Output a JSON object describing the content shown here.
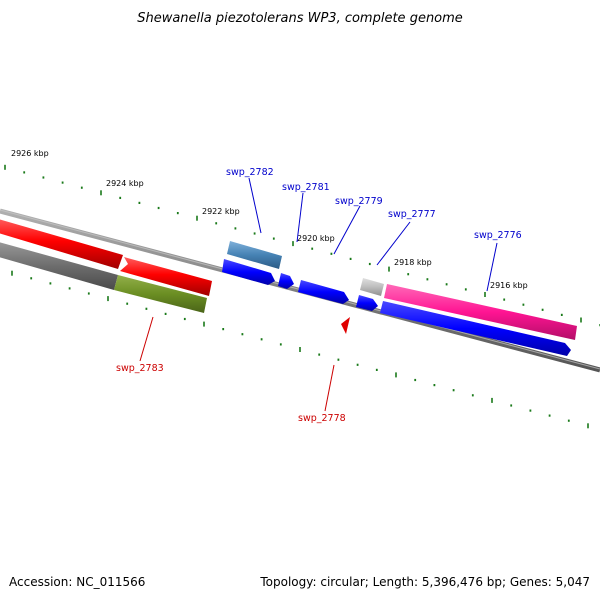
{
  "title": "Shewanella piezotolerans WP3, complete genome",
  "footer": {
    "accession": "Accession: NC_011566",
    "summary": "Topology: circular; Length: 5,396,476 bp; Genes: 5,047"
  },
  "colors": {
    "backbone": "#7f7f7f",
    "tick": "#1a7a1a",
    "label_forward": "#0000cc",
    "label_reverse": "#cc0000",
    "gene_red": "#ff0000",
    "gene_gray": "#707070",
    "gene_olive": "#6b8e23",
    "gene_steelblue": "#4682b4",
    "gene_blue": "#0000ff",
    "gene_lightgray": "#bdbdbd",
    "gene_pink": "#ff1493"
  },
  "tick_labels": [
    "2926 kbp",
    "2924 kbp",
    "2922 kbp",
    "2920 kbp",
    "2918 kbp",
    "2916 kbp"
  ],
  "genes": [
    {
      "name": "swp_2782",
      "strand": "forward",
      "color": "steelblue"
    },
    {
      "name": "swp_2781",
      "strand": "forward",
      "color": "blue"
    },
    {
      "name": "swp_2779",
      "strand": "forward",
      "color": "blue"
    },
    {
      "name": "swp_2777",
      "strand": "forward",
      "color": "lightgray"
    },
    {
      "name": "swp_2776",
      "strand": "forward",
      "color": "pink"
    },
    {
      "name": "swp_2783",
      "strand": "reverse",
      "color": "olive"
    },
    {
      "name": "swp_2778",
      "strand": "reverse",
      "color": "red"
    }
  ]
}
